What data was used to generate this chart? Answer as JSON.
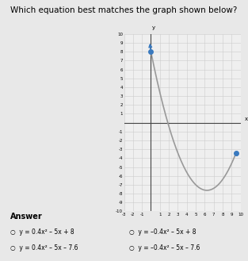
{
  "equation": "y=0.4x^2-5x+8",
  "a": 0.4,
  "b": -5,
  "c": 8,
  "x_start": 0.0,
  "x_end": 9.5,
  "xmin": -3,
  "xmax": 10,
  "ymin": -10,
  "ymax": 10,
  "curve_color": "#999999",
  "arrow_color": "#3a7abf",
  "axis_color": "#444444",
  "grid_color": "#cccccc",
  "background_color": "#efefef",
  "page_background": "#e8e8e8",
  "title": "Which equation best matches the graph shown below?",
  "title_fontsize": 7.5,
  "answer_label": "Answer",
  "options_left": [
    "y = 0.4x² – 5x + 8",
    "y = 0.4x² – 5x – 7.6"
  ],
  "options_right": [
    "y = –0.4x² – 5x + 8",
    "y = –0.4x² – 5x – 7.6"
  ]
}
